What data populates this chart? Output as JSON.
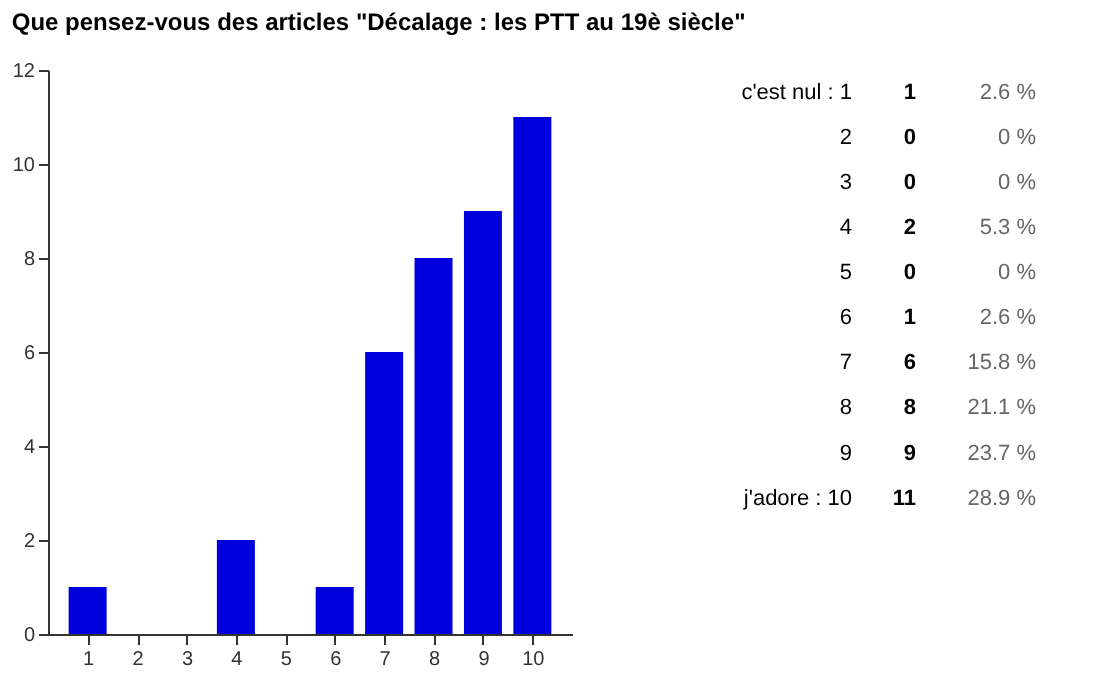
{
  "chart_data": {
    "type": "bar",
    "title": "Que pensez-vous des articles \"Décalage : les PTT au 19è siècle\"",
    "categories": [
      "1",
      "2",
      "3",
      "4",
      "5",
      "6",
      "7",
      "8",
      "9",
      "10"
    ],
    "values": [
      1,
      0,
      0,
      2,
      0,
      1,
      6,
      8,
      9,
      11
    ],
    "color": "#0000dd",
    "ylim": [
      0,
      12
    ],
    "yticks": [
      0,
      2,
      4,
      6,
      8,
      10,
      12
    ],
    "grid": false,
    "annotations": [
      "c'est nul : 1",
      "2",
      "3",
      "4",
      "5",
      "6",
      "7",
      "8",
      "9",
      "j'adore : 10",
      "1",
      "0",
      "0",
      "2",
      "0",
      "1",
      "6",
      "8",
      "9",
      "11",
      "2.6 %",
      "0 %",
      "0 %",
      "5.3 %",
      "0 %",
      "2.6 %",
      "15.8 %",
      "21.1 %",
      "23.7 %",
      "28.9 %"
    ]
  }
}
